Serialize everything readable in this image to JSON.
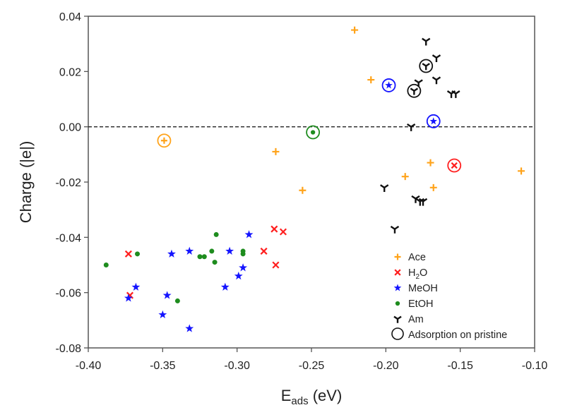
{
  "chart_data": {
    "type": "scatter",
    "title": "",
    "xlabel": "E_ads (eV)",
    "xlabel_main": "E",
    "xlabel_sub": "ads",
    "xlabel_unit": " (eV)",
    "ylabel": "Charge (|e|)",
    "xlim": [
      -0.4,
      -0.1
    ],
    "ylim": [
      -0.08,
      0.04
    ],
    "xticks": [
      -0.4,
      -0.35,
      -0.3,
      -0.25,
      -0.2,
      -0.15,
      -0.1
    ],
    "xtick_labels": [
      "-0.40",
      "-0.35",
      "-0.30",
      "-0.25",
      "-0.20",
      "-0.15",
      "-0.10"
    ],
    "yticks": [
      0.04,
      0.02,
      0.0,
      -0.02,
      -0.04,
      -0.06,
      -0.08
    ],
    "ytick_labels": [
      "0.04",
      "0.02",
      "0.00",
      "-0.02",
      "-0.04",
      "-0.06",
      "-0.08"
    ],
    "grid": false,
    "reference_line": {
      "y": 0.0,
      "style": "dashed",
      "color": "#222222"
    },
    "legend_position": "bottom-right",
    "series": [
      {
        "name": "Ace",
        "label_main": "Ace",
        "label_sub": "",
        "label_tail": "",
        "marker": "plus",
        "color": "#ffa31a",
        "points": [
          [
            -0.221,
            0.035
          ],
          [
            -0.21,
            0.017
          ],
          [
            -0.274,
            -0.009
          ],
          [
            -0.256,
            -0.023
          ],
          [
            -0.187,
            -0.018
          ],
          [
            -0.17,
            -0.013
          ],
          [
            -0.168,
            -0.022
          ],
          [
            -0.109,
            -0.016
          ]
        ],
        "pristine": [
          [
            -0.349,
            -0.005
          ]
        ]
      },
      {
        "name": "H2O",
        "label_main": "H",
        "label_sub": "2",
        "label_tail": "O",
        "marker": "x",
        "color": "#ff1f1f",
        "points": [
          [
            -0.373,
            -0.046
          ],
          [
            -0.372,
            -0.061
          ],
          [
            -0.282,
            -0.045
          ],
          [
            -0.275,
            -0.037
          ],
          [
            -0.269,
            -0.038
          ],
          [
            -0.274,
            -0.05
          ]
        ],
        "pristine": [
          [
            -0.154,
            -0.014
          ]
        ]
      },
      {
        "name": "MeOH",
        "label_main": "MeOH",
        "label_sub": "",
        "label_tail": "",
        "marker": "star",
        "color": "#1414ff",
        "points": [
          [
            -0.373,
            -0.062
          ],
          [
            -0.368,
            -0.058
          ],
          [
            -0.35,
            -0.068
          ],
          [
            -0.347,
            -0.061
          ],
          [
            -0.344,
            -0.046
          ],
          [
            -0.332,
            -0.045
          ],
          [
            -0.332,
            -0.073
          ],
          [
            -0.308,
            -0.058
          ],
          [
            -0.305,
            -0.045
          ],
          [
            -0.299,
            -0.054
          ],
          [
            -0.296,
            -0.051
          ],
          [
            -0.292,
            -0.039
          ]
        ],
        "pristine": [
          [
            -0.198,
            0.015
          ],
          [
            -0.168,
            0.002
          ]
        ]
      },
      {
        "name": "EtOH",
        "label_main": "EtOH",
        "label_sub": "",
        "label_tail": "",
        "marker": "dot",
        "color": "#1e8c1e",
        "points": [
          [
            -0.388,
            -0.05
          ],
          [
            -0.367,
            -0.046
          ],
          [
            -0.34,
            -0.063
          ],
          [
            -0.325,
            -0.047
          ],
          [
            -0.322,
            -0.047
          ],
          [
            -0.317,
            -0.045
          ],
          [
            -0.314,
            -0.039
          ],
          [
            -0.315,
            -0.049
          ],
          [
            -0.296,
            -0.045
          ],
          [
            -0.296,
            -0.046
          ]
        ],
        "pristine": [
          [
            -0.249,
            -0.002
          ]
        ]
      },
      {
        "name": "Am",
        "label_main": "Am",
        "label_sub": "",
        "label_tail": "",
        "marker": "tri",
        "color": "#111111",
        "points": [
          [
            -0.173,
            0.031
          ],
          [
            -0.166,
            0.025
          ],
          [
            -0.178,
            0.016
          ],
          [
            -0.166,
            0.017
          ],
          [
            -0.156,
            0.012
          ],
          [
            -0.153,
            0.012
          ],
          [
            -0.183,
            0.0
          ],
          [
            -0.201,
            -0.022
          ],
          [
            -0.18,
            -0.026
          ],
          [
            -0.177,
            -0.027
          ],
          [
            -0.175,
            -0.027
          ],
          [
            -0.194,
            -0.037
          ]
        ],
        "pristine": [
          [
            -0.173,
            0.022
          ],
          [
            -0.181,
            0.013
          ]
        ]
      }
    ],
    "pristine_legend_label": "Adsorption on pristine"
  }
}
